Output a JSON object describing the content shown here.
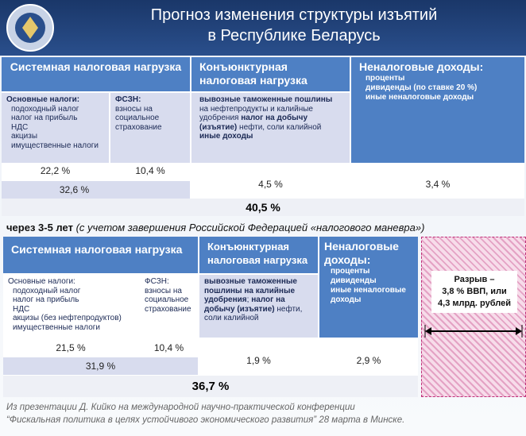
{
  "header": {
    "title_lines": [
      "Прогноз изменения структуры изъятий",
      "в Республике Беларусь"
    ]
  },
  "table1": {
    "systemic": "Системная налоговая нагрузка",
    "conjunctural": "Конъюнктурная налоговая нагрузка",
    "nontax": {
      "title": "Неналоговые доходы:",
      "items": [
        "проценты",
        "дивиденды (по ставке 20 %)",
        "иные неналоговые доходы"
      ]
    },
    "main_taxes": {
      "title": "Основные налоги:",
      "items": [
        "подоходный налог",
        "налог на прибыль",
        "НДС",
        "акцизы",
        "имущественные налоги"
      ]
    },
    "fszn": {
      "title": "ФСЗН:",
      "text": "взносы на социальное страхование"
    },
    "conj_text": [
      {
        "text": "вывозные таможенные пошлины",
        "bold": true
      },
      {
        "text": " на нефтепродукты и калийные удобрения",
        "bold": false
      },
      {
        "text": " налог на добычу (изъятие)",
        "bold": true
      },
      {
        "text": " нефти, соли калийной",
        "bold": false
      },
      {
        "text": " иные доходы",
        "bold": true
      }
    ],
    "main_pct": "22,2 %",
    "fszn_pct": "10,4 %",
    "systemic_pct": "32,6 %",
    "conj_pct": "4,5 %",
    "nontax_pct": "3,4 %",
    "total": "40,5 %"
  },
  "caption": {
    "bold": "через 3-5 лет",
    "italic": "(с учетом завершения Российской Федерацией «налогового маневра»)"
  },
  "table2": {
    "systemic": "Системная налоговая нагрузка",
    "conjunctural": "Конъюнктурная налоговая нагрузка",
    "nontax": {
      "title": "Неналоговые доходы:",
      "items": [
        "проценты",
        "дивиденды",
        "иные неналоговые доходы"
      ]
    },
    "main_taxes": {
      "title": "Основные налоги:",
      "items": [
        "подоходный налог",
        "налог на прибыль",
        "НДС",
        "акцизы (без нефтепродуктов)",
        "имущественные налоги"
      ]
    },
    "fszn": {
      "title": "ФСЗН:",
      "text": "взносы на социальное страхование"
    },
    "conj_text": [
      {
        "text": "вывозные таможенные пошлины на калийные удобрения",
        "bold": true
      },
      {
        "text": ";",
        "bold": false
      },
      {
        "text": " налог на добычу (изъятие)",
        "bold": true
      },
      {
        "text": " нефти, соли калийной",
        "bold": false
      }
    ],
    "main_pct": "21,5 %",
    "fszn_pct": "10,4 %",
    "systemic_pct": "31,9 %",
    "conj_pct": "1,9 %",
    "nontax_pct": "2,9 %",
    "total": "36,7 %",
    "gap": [
      "Разрыв –",
      "3,8 % ВВП, или",
      "4,3 млрд. рублей"
    ]
  },
  "footer": [
    "Из презентации Д. Кийко на международной научно-практической конференции",
    "“Фискальная политика в целях устойчивого экономического развития” 28 марта в Минске."
  ]
}
